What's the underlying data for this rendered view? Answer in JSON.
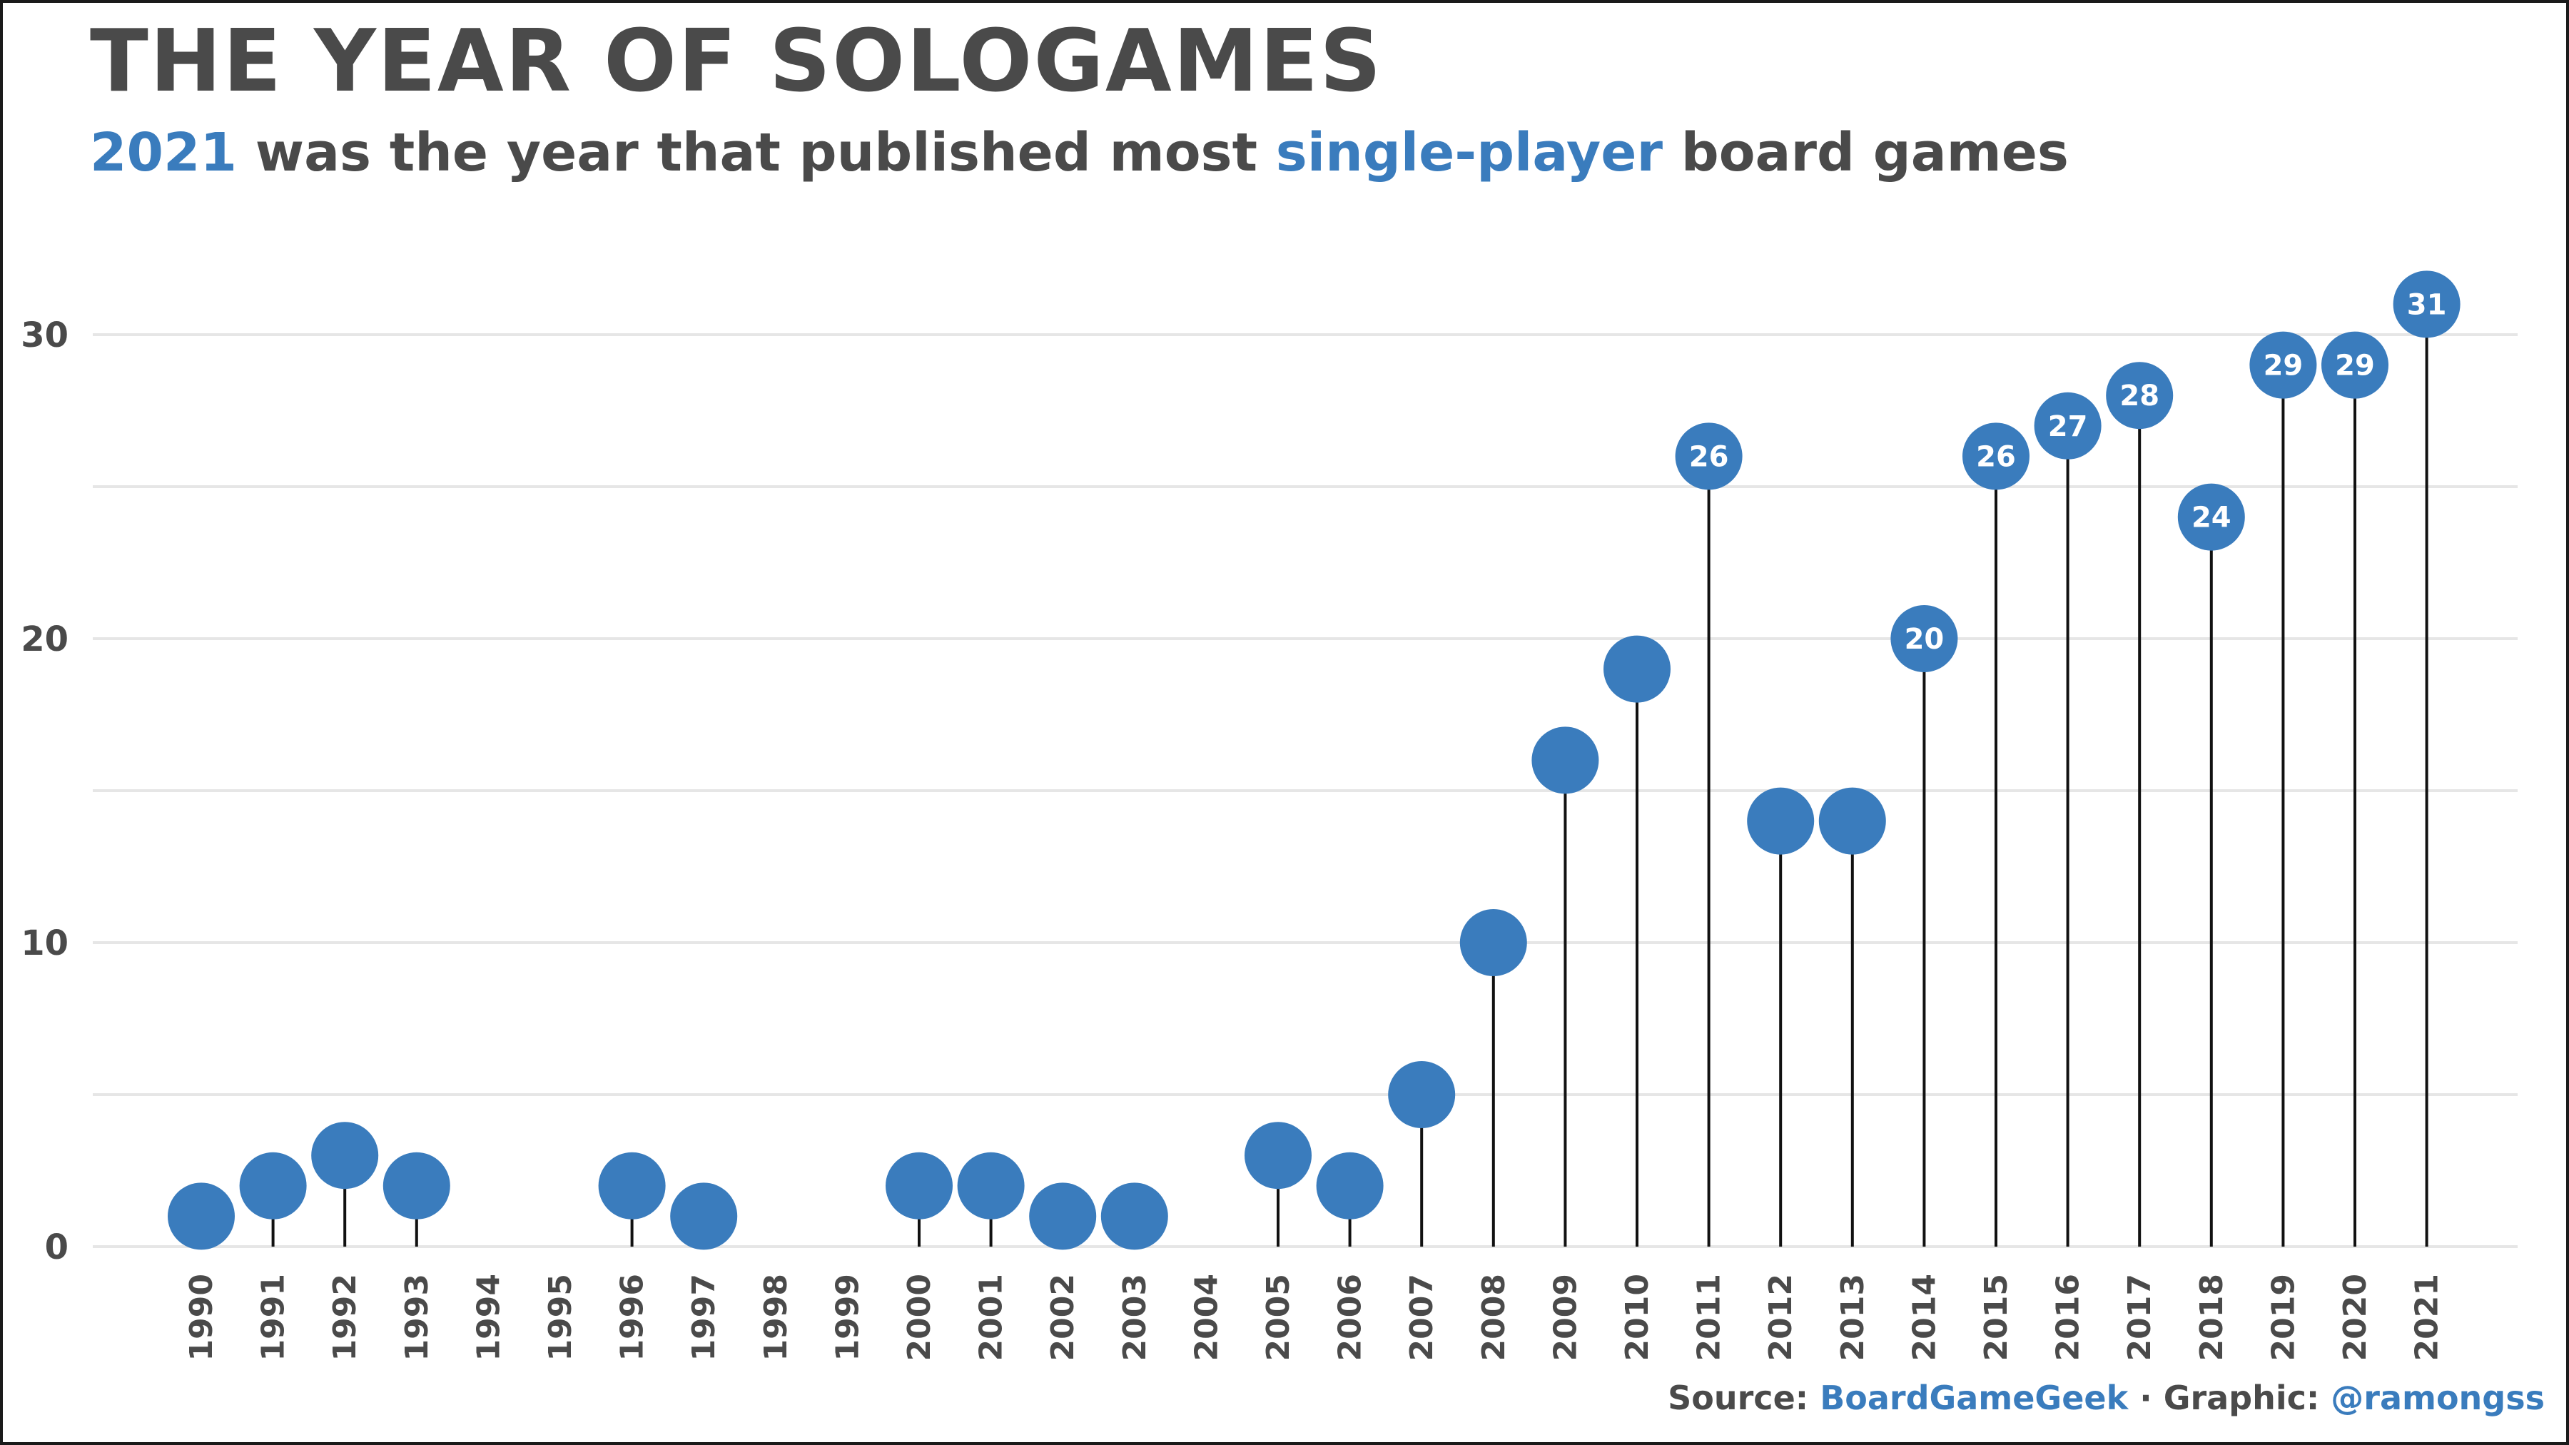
{
  "title": "THE YEAR OF SOLOGAMES",
  "subtitle": {
    "highlight_year": "2021",
    "text_1": " was the year that published most ",
    "highlight_term": "single-player",
    "text_2": " board games"
  },
  "source": {
    "label": "Source: ",
    "name": "BoardGameGeek",
    "sep": " · Graphic: ",
    "handle": "@ramongss"
  },
  "colors": {
    "point": "#3a7cbd",
    "text": "#4a4a4a",
    "grid": "#e6e6e6",
    "stem": "#111111"
  },
  "chart_data": {
    "type": "lollipop",
    "categories": [
      "1990",
      "1991",
      "1992",
      "1993",
      "1994",
      "1995",
      "1996",
      "1997",
      "1998",
      "1999",
      "2000",
      "2001",
      "2002",
      "2003",
      "2004",
      "2005",
      "2006",
      "2007",
      "2008",
      "2009",
      "2010",
      "2011",
      "2012",
      "2013",
      "2014",
      "2015",
      "2016",
      "2017",
      "2018",
      "2019",
      "2020",
      "2021"
    ],
    "values": [
      1,
      2,
      3,
      2,
      null,
      null,
      2,
      1,
      null,
      null,
      2,
      2,
      1,
      1,
      null,
      3,
      2,
      5,
      10,
      16,
      19,
      26,
      14,
      14,
      20,
      26,
      27,
      28,
      24,
      29,
      29,
      31
    ],
    "labeled_categories": [
      "2011",
      "2014",
      "2015",
      "2016",
      "2017",
      "2018",
      "2019",
      "2020",
      "2021"
    ],
    "y_ticks": [
      0,
      10,
      20,
      30
    ],
    "ylim": [
      0,
      31
    ],
    "grid": true,
    "legend": "none"
  }
}
